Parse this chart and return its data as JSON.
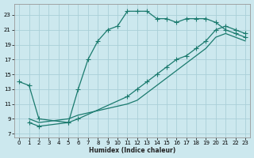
{
  "bg_color": "#cce8ee",
  "grid_color": "#aacfd8",
  "line_color": "#1a7a6e",
  "xlabel": "Humidex (Indice chaleur)",
  "xlim": [
    -0.5,
    23.5
  ],
  "ylim": [
    6.5,
    24.5
  ],
  "yticks": [
    7,
    9,
    11,
    13,
    15,
    17,
    19,
    21,
    23
  ],
  "xticks": [
    0,
    1,
    2,
    3,
    4,
    5,
    6,
    7,
    8,
    9,
    10,
    11,
    12,
    13,
    14,
    15,
    16,
    17,
    18,
    19,
    20,
    21,
    22,
    23
  ],
  "line1_x": [
    0,
    1,
    2,
    5,
    6,
    7,
    8,
    9,
    10,
    11,
    12,
    13,
    14,
    15,
    16,
    17,
    18,
    19,
    20,
    21,
    22,
    23
  ],
  "line1_y": [
    14,
    13.5,
    9,
    8.5,
    13,
    17,
    19.5,
    21,
    21.5,
    23.5,
    23.5,
    23.5,
    22.5,
    22.5,
    22,
    22.5,
    22.5,
    22.5,
    22,
    21,
    20.5,
    20
  ],
  "line2_x": [
    1,
    2,
    5,
    6,
    11,
    12,
    13,
    14,
    15,
    16,
    17,
    18,
    19,
    20,
    21,
    22,
    23
  ],
  "line2_y": [
    8.5,
    8.0,
    8.5,
    9,
    12,
    13,
    14,
    15,
    16,
    17,
    17.5,
    18.5,
    19.5,
    21,
    21.5,
    21,
    20.5
  ],
  "line3_x": [
    1,
    2,
    5,
    6,
    11,
    12,
    13,
    14,
    15,
    16,
    17,
    18,
    19,
    20,
    21,
    22,
    23
  ],
  "line3_y": [
    9,
    8.5,
    9,
    9.5,
    11,
    11.5,
    12.5,
    13.5,
    14.5,
    15.5,
    16.5,
    17.5,
    18.5,
    20,
    20.5,
    20,
    19.5
  ]
}
